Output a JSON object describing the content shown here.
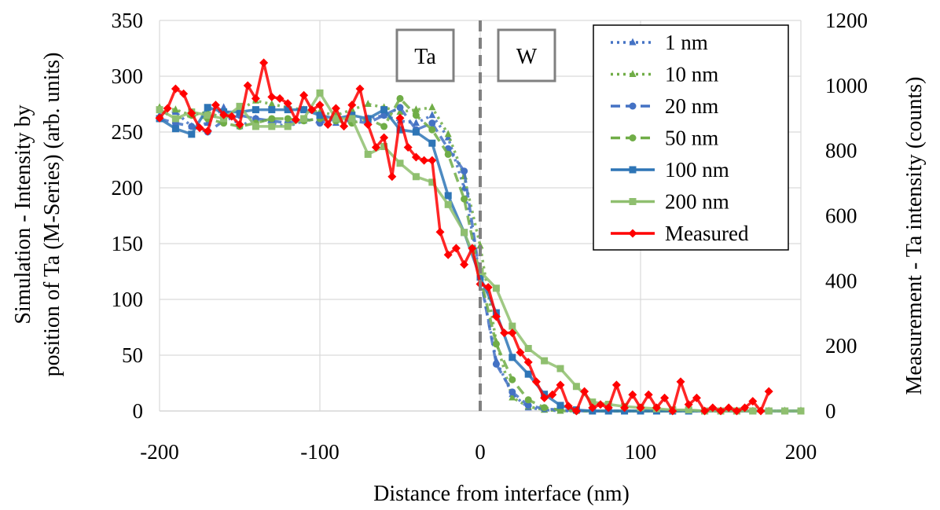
{
  "chart_data": {
    "type": "line",
    "title": "",
    "xlabel": "Distance from interface (nm)",
    "ylabel_left_line1": "Simulation - Intensity by",
    "ylabel_left_line2": "position of Ta (M-Series) (arb. units)",
    "ylabel_right": "Measurement - Ta intensity (counts)",
    "xlim": [
      -200,
      200
    ],
    "ylim_left": [
      0,
      350
    ],
    "ylim_right": [
      0,
      1200
    ],
    "x_ticks": [
      "-200",
      "-100",
      "0",
      "100",
      "200"
    ],
    "y_left_ticks": [
      "0",
      "50",
      "100",
      "150",
      "200",
      "250",
      "300",
      "350"
    ],
    "y_right_ticks": [
      "0",
      "200",
      "400",
      "600",
      "800",
      "1000",
      "1200"
    ],
    "grid": true,
    "legend_position": "top-right",
    "annotations": {
      "left_region": "Ta",
      "right_region": "W",
      "interface_x": 0
    },
    "series": [
      {
        "name": "1 nm",
        "axis": "left",
        "color": "#4472c4",
        "line": "dotted",
        "marker": "triangle",
        "x": [
          -200,
          -190,
          -180,
          -170,
          -160,
          -150,
          -140,
          -130,
          -120,
          -110,
          -100,
          -90,
          -80,
          -70,
          -60,
          -50,
          -40,
          -30,
          -20,
          -10,
          0,
          10,
          20,
          30,
          40,
          50,
          60,
          70,
          80,
          90,
          100,
          110,
          120,
          130,
          140,
          150,
          160,
          170,
          180,
          190,
          200
        ],
        "values": [
          265,
          268,
          255,
          258,
          272,
          255,
          262,
          258,
          255,
          260,
          262,
          258,
          260,
          262,
          265,
          260,
          258,
          265,
          245,
          200,
          120,
          45,
          15,
          3,
          1,
          0,
          0,
          0,
          0,
          0,
          0,
          0,
          0,
          0,
          0,
          0,
          0,
          0,
          0,
          0,
          0
        ]
      },
      {
        "name": "10 nm",
        "axis": "left",
        "color": "#70ad47",
        "line": "dotted",
        "marker": "triangle",
        "x": [
          -200,
          -190,
          -180,
          -170,
          -160,
          -150,
          -140,
          -130,
          -120,
          -110,
          -100,
          -90,
          -80,
          -70,
          -60,
          -50,
          -40,
          -30,
          -20,
          -10,
          0,
          10,
          20,
          30,
          40,
          50,
          60,
          70,
          80,
          90,
          100,
          110,
          120,
          130,
          140,
          150,
          160,
          170,
          180,
          190,
          200
        ],
        "values": [
          272,
          270,
          265,
          268,
          262,
          270,
          278,
          275,
          272,
          270,
          268,
          265,
          270,
          275,
          272,
          268,
          270,
          272,
          248,
          210,
          148,
          62,
          12,
          4,
          1,
          0,
          0,
          0,
          0,
          0,
          0,
          0,
          0,
          0,
          0,
          0,
          0,
          0,
          0,
          0,
          0
        ]
      },
      {
        "name": "20 nm",
        "axis": "left",
        "color": "#4472c4",
        "line": "dashed",
        "marker": "circle",
        "x": [
          -200,
          -190,
          -180,
          -170,
          -160,
          -150,
          -140,
          -130,
          -120,
          -110,
          -100,
          -90,
          -80,
          -70,
          -60,
          -50,
          -40,
          -30,
          -20,
          -10,
          0,
          10,
          20,
          30,
          40,
          50,
          60,
          70,
          80,
          90,
          100,
          110,
          120,
          130,
          140,
          150,
          160,
          170,
          180,
          190,
          200
        ],
        "values": [
          262,
          258,
          255,
          250,
          260,
          265,
          262,
          260,
          258,
          262,
          258,
          262,
          260,
          258,
          265,
          272,
          252,
          258,
          235,
          215,
          120,
          42,
          17,
          5,
          2,
          1,
          0,
          0,
          0,
          0,
          0,
          0,
          0,
          0,
          0,
          0,
          0,
          0,
          0,
          0,
          0
        ]
      },
      {
        "name": "50 nm",
        "axis": "left",
        "color": "#70ad47",
        "line": "dashed",
        "marker": "circle",
        "x": [
          -200,
          -190,
          -180,
          -170,
          -160,
          -150,
          -140,
          -130,
          -120,
          -110,
          -100,
          -90,
          -80,
          -70,
          -60,
          -50,
          -40,
          -30,
          -20,
          -10,
          0,
          10,
          20,
          30,
          40,
          50,
          60,
          70,
          80,
          90,
          100,
          110,
          120,
          130,
          140,
          150,
          160,
          170,
          180,
          190,
          200
        ],
        "values": [
          270,
          262,
          265,
          262,
          258,
          255,
          258,
          262,
          262,
          260,
          262,
          260,
          258,
          262,
          255,
          280,
          265,
          252,
          230,
          190,
          120,
          60,
          28,
          10,
          3,
          1,
          0,
          0,
          0,
          0,
          0,
          0,
          0,
          0,
          0,
          0,
          0,
          0,
          0,
          0,
          0
        ]
      },
      {
        "name": "100 nm",
        "axis": "left",
        "color": "#2e75b6",
        "line": "solid",
        "marker": "square",
        "x": [
          -200,
          -190,
          -180,
          -170,
          -160,
          -150,
          -140,
          -130,
          -120,
          -110,
          -100,
          -90,
          -80,
          -70,
          -60,
          -50,
          -40,
          -30,
          -20,
          -10,
          0,
          10,
          20,
          30,
          40,
          50,
          60,
          70,
          80,
          90,
          100,
          110,
          120,
          130,
          140,
          150,
          160,
          170,
          180,
          190,
          200
        ],
        "values": [
          262,
          253,
          248,
          272,
          268,
          268,
          270,
          270,
          270,
          270,
          265,
          262,
          265,
          262,
          270,
          252,
          250,
          240,
          193,
          160,
          120,
          88,
          48,
          33,
          15,
          5,
          1,
          0,
          0,
          0,
          0,
          0,
          0,
          0,
          0,
          0,
          0,
          0,
          0,
          0,
          0
        ]
      },
      {
        "name": "200 nm",
        "axis": "left",
        "color": "#8fbf6f",
        "line": "solid",
        "marker": "square",
        "x": [
          -200,
          -190,
          -180,
          -170,
          -160,
          -150,
          -140,
          -130,
          -120,
          -110,
          -100,
          -90,
          -80,
          -70,
          -60,
          -50,
          -40,
          -30,
          -20,
          -10,
          0,
          10,
          20,
          30,
          40,
          50,
          60,
          70,
          80,
          90,
          100,
          110,
          120,
          130,
          140,
          150,
          160,
          170,
          180,
          190,
          200
        ],
        "values": [
          270,
          262,
          268,
          265,
          262,
          273,
          255,
          255,
          255,
          262,
          285,
          262,
          262,
          230,
          237,
          222,
          210,
          205,
          185,
          160,
          125,
          110,
          76,
          56,
          45,
          38,
          22,
          8,
          6,
          4,
          3,
          2,
          1,
          1,
          0,
          0,
          0,
          0,
          0,
          0,
          0
        ]
      },
      {
        "name": "Measured",
        "axis": "right",
        "color": "#ff0000",
        "line": "solid",
        "marker": "diamond",
        "x": [
          -200,
          -195,
          -190,
          -185,
          -180,
          -175,
          -170,
          -165,
          -160,
          -155,
          -150,
          -145,
          -140,
          -135,
          -130,
          -125,
          -120,
          -115,
          -110,
          -105,
          -100,
          -95,
          -90,
          -85,
          -80,
          -75,
          -70,
          -65,
          -60,
          -55,
          -50,
          -45,
          -40,
          -35,
          -30,
          -25,
          -20,
          -15,
          -10,
          -5,
          0,
          5,
          10,
          15,
          20,
          25,
          30,
          35,
          40,
          45,
          50,
          55,
          60,
          65,
          70,
          75,
          80,
          85,
          90,
          95,
          100,
          105,
          110,
          115,
          120,
          125,
          130,
          135,
          140,
          145,
          150,
          155,
          160,
          165,
          170,
          175,
          180
        ],
        "values": [
          900,
          930,
          990,
          975,
          915,
          870,
          860,
          940,
          910,
          905,
          880,
          1000,
          960,
          1070,
          965,
          960,
          945,
          895,
          970,
          925,
          940,
          880,
          930,
          875,
          940,
          990,
          880,
          810,
          840,
          720,
          900,
          810,
          780,
          770,
          770,
          550,
          480,
          500,
          450,
          500,
          390,
          380,
          290,
          240,
          240,
          180,
          150,
          90,
          40,
          50,
          80,
          15,
          0,
          60,
          10,
          20,
          10,
          80,
          10,
          50,
          10,
          50,
          10,
          40,
          0,
          90,
          20,
          40,
          0,
          10,
          0,
          10,
          0,
          10,
          30,
          0,
          60
        ]
      }
    ]
  }
}
